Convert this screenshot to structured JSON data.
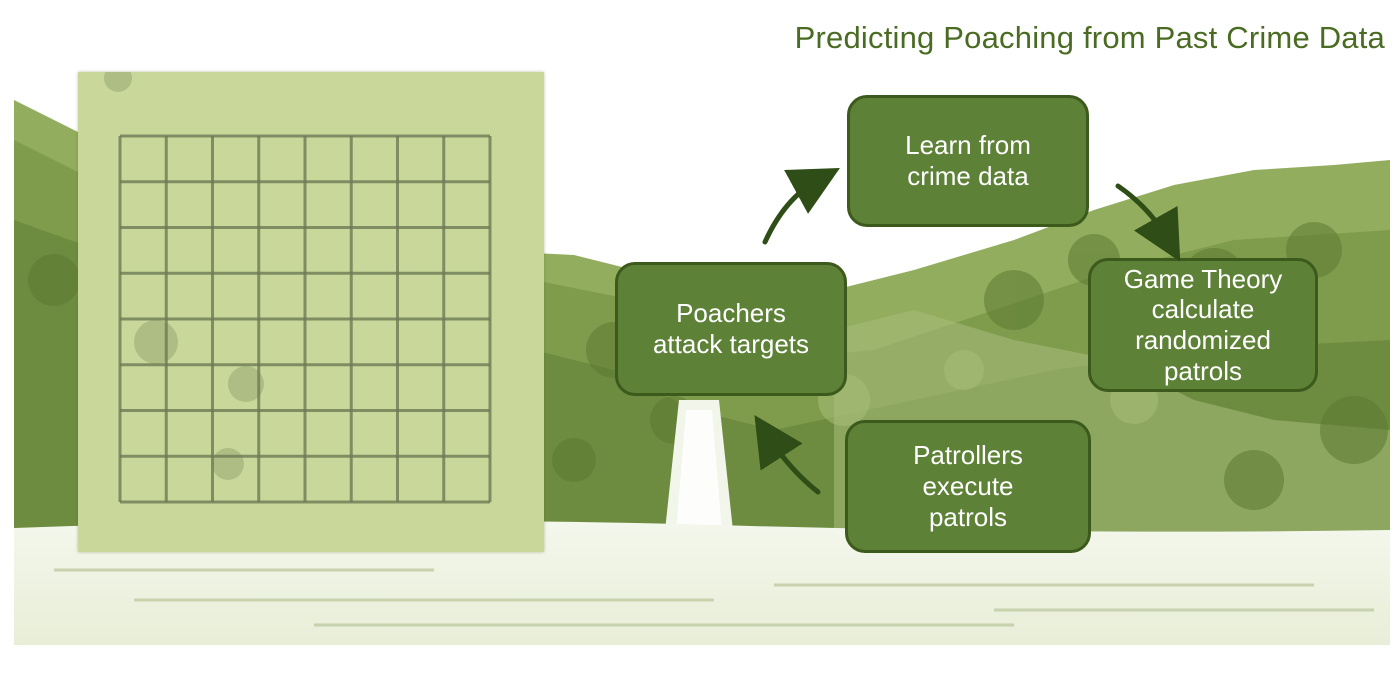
{
  "title": "Predicting Poaching from Past Crime Data",
  "colors": {
    "title_text": "#4a6b22",
    "box_fill": "#5d8136",
    "box_border": "#3d5a1d",
    "arrow": "#2f4d16",
    "grid_paper": "#c9d89a",
    "grid_line": "#6f7a55"
  },
  "cycle": {
    "learn": "Learn from\ncrime data",
    "game_theory": "Game Theory\ncalculate\nrandomized\npatrols",
    "patrollers": "Patrollers\nexecute\npatrols",
    "poachers": "Poachers\nattack targets"
  },
  "grid_map": {
    "rows": 8,
    "cols": 8
  }
}
